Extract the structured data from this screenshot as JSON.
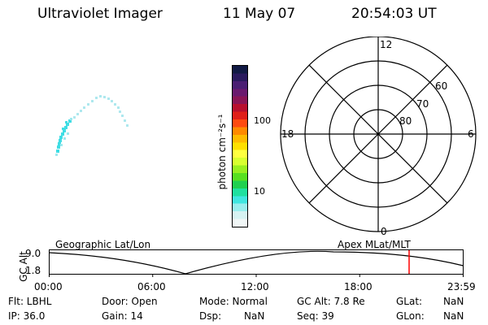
{
  "header": {
    "instrument": "Ultraviolet Imager",
    "date": "11 May 07",
    "time": "20:54:03 UT"
  },
  "colorbar": {
    "unit_label": "photon cm⁻²s⁻¹",
    "tick_labels": [
      "100",
      "10"
    ],
    "colors": [
      "#111a44",
      "#2a1a5e",
      "#4a1f73",
      "#6a1a6e",
      "#8a1555",
      "#b8102e",
      "#e0201a",
      "#ff4b10",
      "#ff8a00",
      "#ffbb00",
      "#ffe000",
      "#ffff40",
      "#d8ff30",
      "#98f020",
      "#58e020",
      "#20d050",
      "#20e0a0",
      "#40e6e0",
      "#9aeeee",
      "#d6f2f2",
      "#f0f6f6"
    ]
  },
  "polar": {
    "mlt_labels": {
      "top": "12",
      "left": "18",
      "right": "6",
      "bottom": "0"
    },
    "lat_labels": [
      "60",
      "70",
      "80"
    ]
  },
  "track": {
    "y_label": "GC Alt",
    "y_ticks": [
      "9.0",
      "1.8"
    ],
    "left_title": "Geographic Lat/Lon",
    "right_title": "Apex MLat/MLT",
    "time_ticks": [
      "00:00",
      "06:00",
      "12:00",
      "18:00",
      "23:59"
    ],
    "marker_color": "#ff0000"
  },
  "info": {
    "row1": [
      "Flt: LBHL",
      "Door: Open",
      "Mode: Normal",
      "GC Alt: 7.8 Re",
      "GLat:",
      "NaN"
    ],
    "row2": [
      "IP: 36.0",
      "Gain: 14",
      "Dsp:",
      "NaN",
      "Seq: 39",
      "GLon:",
      "NaN"
    ]
  }
}
